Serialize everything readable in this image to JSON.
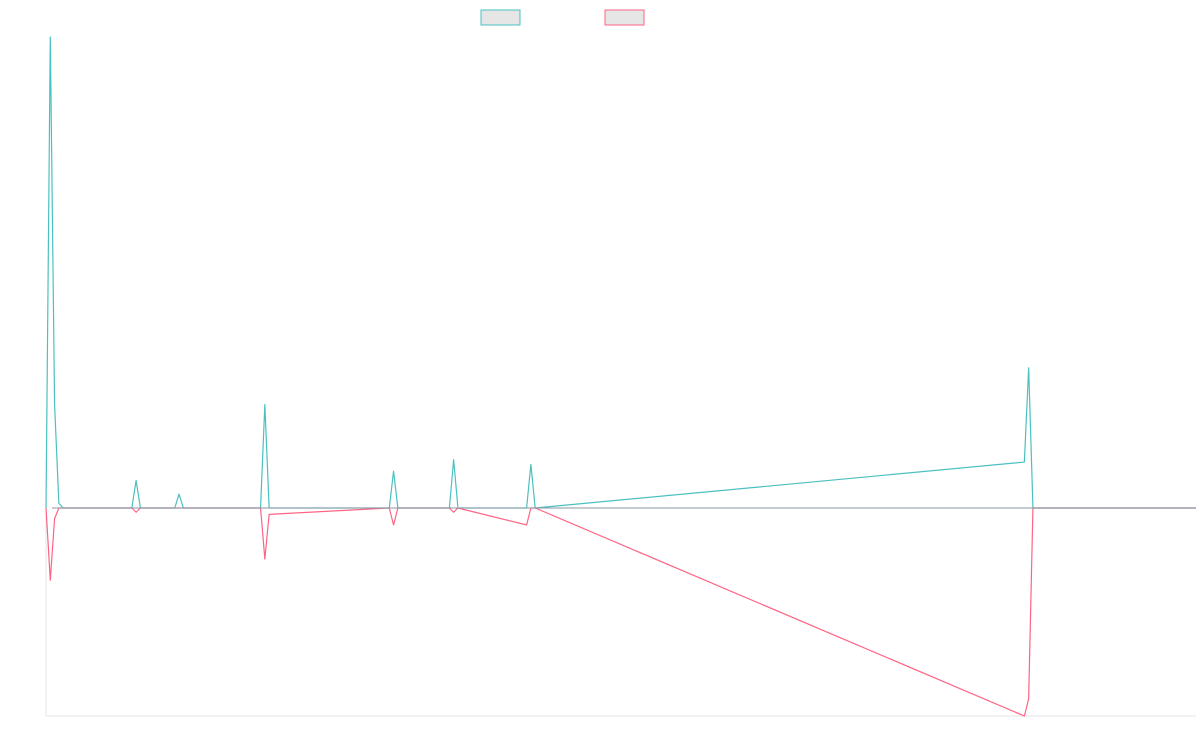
{
  "chart_data": {
    "type": "line",
    "title": "",
    "xlabel": "",
    "ylabel": "",
    "grid": false,
    "legend_position": "top-center",
    "x": [
      0,
      1,
      2,
      3,
      4,
      5,
      20,
      21,
      22,
      30,
      31,
      32,
      50,
      51,
      52,
      80,
      81,
      82,
      94,
      95,
      96,
      112,
      113,
      114,
      228,
      229,
      230,
      268
    ],
    "ylim": [
      -1.0,
      2.0
    ],
    "series": [
      {
        "name": "",
        "color": "#4bc0c0",
        "values": [
          0,
          2.05,
          0.45,
          0.02,
          0,
          0,
          0,
          0.12,
          0,
          0,
          0.06,
          0,
          0,
          0.45,
          0,
          0,
          0.16,
          0,
          0,
          0.21,
          0,
          0,
          0.19,
          0,
          0.2,
          0.61,
          0,
          0
        ]
      },
      {
        "name": "",
        "color": "#ff6384",
        "values": [
          0,
          -0.34,
          -0.05,
          0,
          0,
          0,
          0,
          -0.02,
          0,
          0,
          0,
          0,
          0,
          -0.24,
          -0.03,
          0,
          -0.08,
          0,
          0,
          -0.02,
          0,
          -0.08,
          0,
          0,
          -0.98,
          -0.9,
          0,
          0
        ]
      }
    ]
  }
}
